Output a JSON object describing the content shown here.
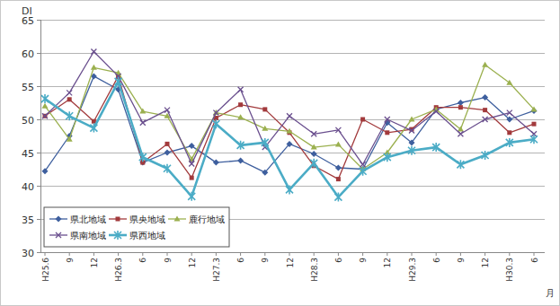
{
  "chart_data": {
    "type": "line",
    "x_label": "月",
    "y_label": "DI",
    "categories": [
      "H25.6",
      "9",
      "12",
      "H26.3",
      "6",
      "9",
      "12",
      "H27.3",
      "6",
      "9",
      "12",
      "H28.3",
      "6",
      "9",
      "12",
      "H29.3",
      "6",
      "9",
      "12",
      "H30.3",
      "6"
    ],
    "series": [
      {
        "name": "県北地域",
        "color": "#3e5f9e",
        "marker": "diamond",
        "values": [
          42.2,
          47.5,
          56.5,
          54.5,
          43.5,
          45,
          46,
          43.5,
          43.8,
          42,
          46.3,
          44.8,
          42.7,
          42.5,
          49.5,
          46.5,
          51.5,
          52.5,
          53.3,
          50,
          51.3
        ]
      },
      {
        "name": "県央地域",
        "color": "#a23a3c",
        "marker": "square",
        "values": [
          50.5,
          53,
          49.7,
          56.5,
          43.5,
          46.3,
          41.2,
          50.2,
          52.2,
          51.5,
          48,
          43,
          41,
          50,
          48,
          48.5,
          51.8,
          51.8,
          51.4,
          48,
          49.3
        ]
      },
      {
        "name": "鹿行地域",
        "color": "#9bb04f",
        "marker": "triangle",
        "values": [
          52,
          47,
          57.8,
          57,
          51.2,
          50.5,
          44,
          51,
          50.3,
          48.6,
          48.2,
          45.8,
          46.2,
          42.5,
          45,
          50,
          51.5,
          48.5,
          58.2,
          55.5,
          51.5
        ]
      },
      {
        "name": "県南地域",
        "color": "#6a4f8e",
        "marker": "x",
        "values": [
          50.5,
          54,
          60.2,
          56.5,
          49.5,
          51.4,
          43.3,
          51,
          54.5,
          45.8,
          50.5,
          47.8,
          48.4,
          43.2,
          50,
          48.3,
          51.2,
          47.8,
          50,
          51,
          47.8
        ]
      },
      {
        "name": "県西地域",
        "color": "#4bacc6",
        "marker": "star",
        "values": [
          53.1,
          50.5,
          48.7,
          55.7,
          44.3,
          42.6,
          38.4,
          49.3,
          46.1,
          46.5,
          39.4,
          43.4,
          38.3,
          42.2,
          44.3,
          45.3,
          45.8,
          43.2,
          44.6,
          46.5,
          47
        ]
      }
    ],
    "ylim": [
      30,
      65
    ],
    "yticks": [
      30,
      35,
      40,
      45,
      50,
      55,
      60,
      65
    ],
    "grid": true,
    "legend": "lower left"
  }
}
